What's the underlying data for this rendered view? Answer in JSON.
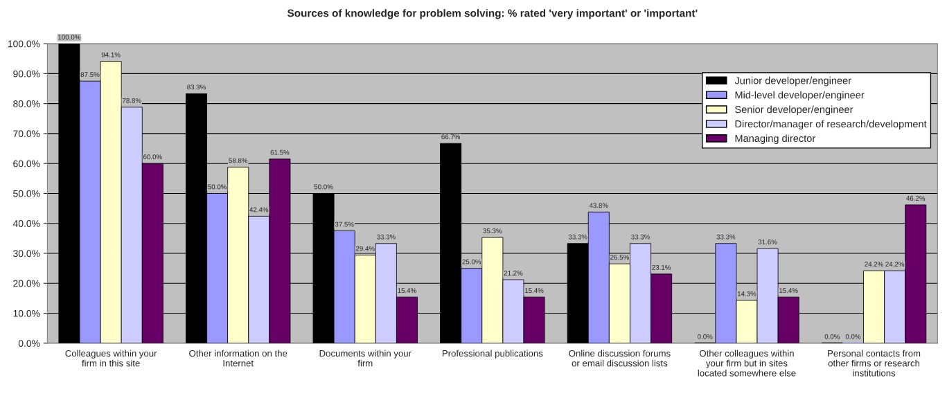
{
  "chart_data": {
    "type": "bar",
    "title": "Sources of knowledge for problem solving: % rated 'very important' or 'important'",
    "categories": [
      "Colleagues within your\nfirm in this site",
      "Other information on the\nInternet",
      "Documents within your\nfirm",
      "Professional publications",
      "Online discussion forums\nor email discussion lists",
      "Other colleagues within\nyour firm but in sites\nlocated somewhere else",
      "Personal contacts from\nother firms or research\ninstitutions"
    ],
    "series": [
      {
        "name": "Junior developer/engineer",
        "color": "#000000",
        "values": [
          100.0,
          83.3,
          50.0,
          66.7,
          33.3,
          0.0,
          0.0
        ],
        "value_labels": [
          "100.0%",
          "83.3%",
          "50.0%",
          "66.7%",
          "33.3%",
          "0.0%",
          "0.0%"
        ]
      },
      {
        "name": "Mid-level developer/engineer",
        "color": "#9999ff",
        "values": [
          87.5,
          50.0,
          37.5,
          25.0,
          43.8,
          33.3,
          0.0
        ],
        "value_labels": [
          "87.5%",
          "50.0%",
          "37.5%",
          "25.0%",
          "43.8%",
          "33.3%",
          "0.0%"
        ]
      },
      {
        "name": "Senior developer/engineer",
        "color": "#ffffcc",
        "values": [
          94.1,
          58.8,
          29.4,
          35.3,
          26.5,
          14.3,
          24.2
        ],
        "value_labels": [
          "94.1%",
          "58.8%",
          "29.4%",
          "35.3%",
          "26.5%",
          "14.3%",
          "24.2%"
        ]
      },
      {
        "name": "Director/manager of research/development",
        "color": "#ccccff",
        "values": [
          78.8,
          42.4,
          33.3,
          21.2,
          33.3,
          31.6,
          24.2
        ],
        "value_labels": [
          "78.8%",
          "42.4%",
          "33.3%",
          "21.2%",
          "33.3%",
          "31.6%",
          "24.2%"
        ]
      },
      {
        "name": "Managing director",
        "color": "#660066",
        "values": [
          60.0,
          61.5,
          15.4,
          15.4,
          23.1,
          15.4,
          46.2
        ],
        "value_labels": [
          "60.0%",
          "61.5%",
          "15.4%",
          "15.4%",
          "23.1%",
          "15.4%",
          "46.2%"
        ]
      }
    ],
    "ylim": [
      0,
      100
    ],
    "yticks": [
      {
        "value": 0,
        "label": "0.0%"
      },
      {
        "value": 10,
        "label": "10.0%"
      },
      {
        "value": 20,
        "label": "20.0%"
      },
      {
        "value": 30,
        "label": "30.0%"
      },
      {
        "value": 40,
        "label": "40.0%"
      },
      {
        "value": 50,
        "label": "50.0%"
      },
      {
        "value": 60,
        "label": "60.0%"
      },
      {
        "value": 70,
        "label": "70.0%"
      },
      {
        "value": 80,
        "label": "80.0%"
      },
      {
        "value": 90,
        "label": "90.0%"
      },
      {
        "value": 100,
        "label": "100.0%"
      }
    ],
    "grid": "y",
    "legend": "top right"
  }
}
